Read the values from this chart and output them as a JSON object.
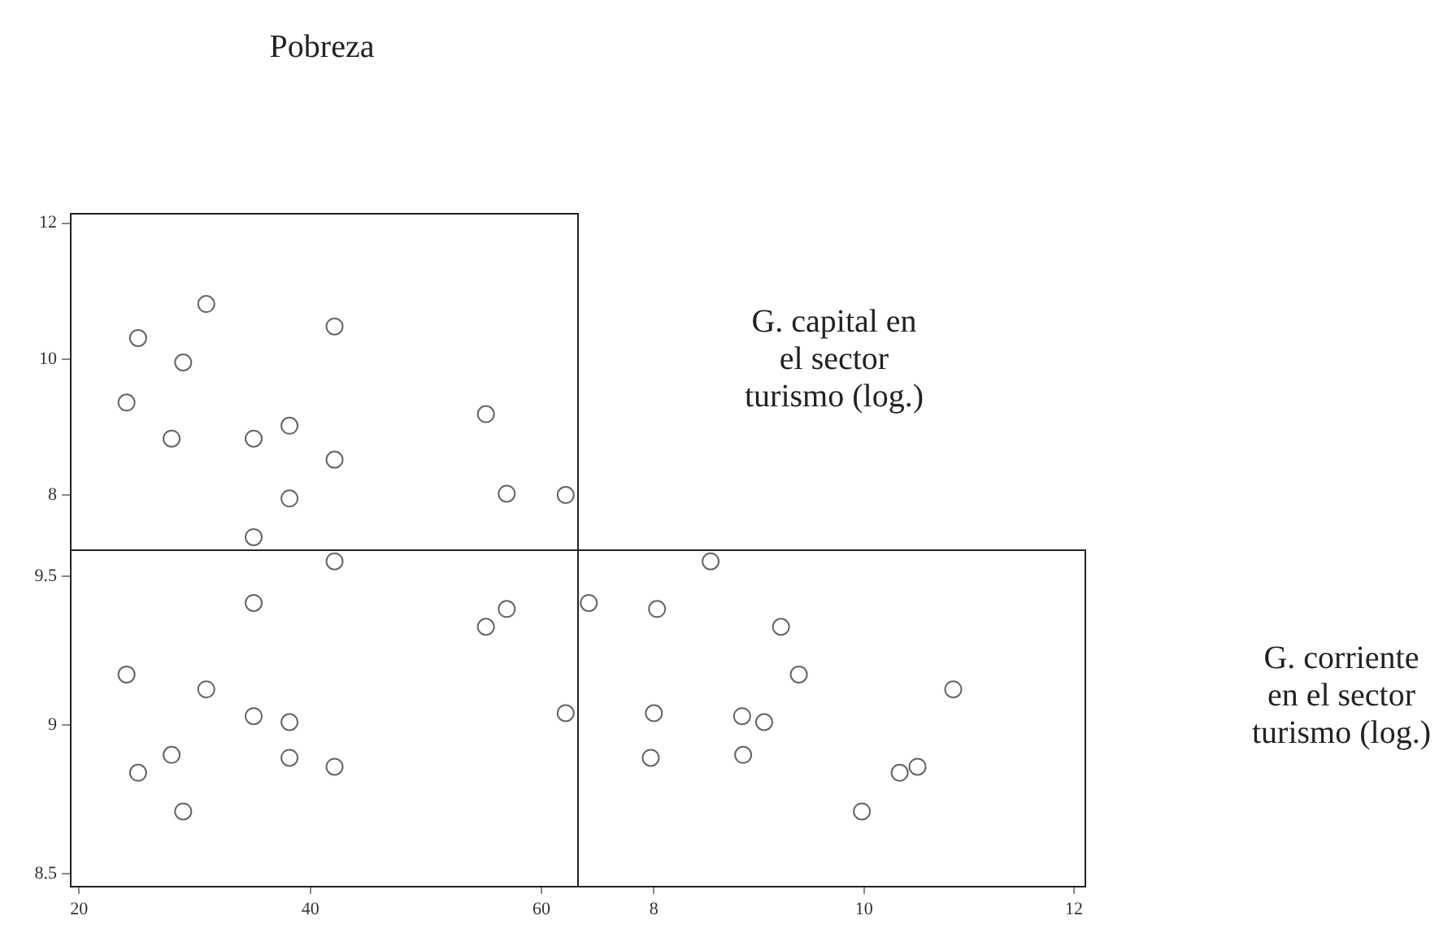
{
  "chart_data": [
    {
      "type": "scatter",
      "xlabel": "Pobreza",
      "ylabel": "G. capital en el sector turismo (log.)",
      "marker": "circle",
      "tick_labels": "y",
      "xlim": [
        19.2,
        63.1
      ],
      "ylim": [
        7.2,
        12.15
      ],
      "yticks": [
        8,
        10,
        12
      ],
      "series": [
        {
          "color": "#666666",
          "x": [
            24.1,
            25.1,
            28.0,
            29.0,
            31.0,
            35.1,
            35.1,
            38.2,
            38.2,
            42.1,
            42.1,
            55.2,
            57.0,
            62.1
          ],
          "values": [
            9.36,
            10.31,
            8.83,
            9.95,
            10.81,
            8.83,
            7.38,
            9.02,
            7.95,
            10.48,
            8.52,
            9.19,
            8.02,
            8.0
          ]
        }
      ]
    },
    {
      "type": "scatter",
      "ylabel": "G. corriente en el sector turismo (log.)",
      "marker": "circle",
      "xlim": [
        19.2,
        63.1
      ],
      "xticks": [
        20,
        40,
        60
      ],
      "ylim": [
        8.46,
        9.59
      ],
      "yticks": [
        8.5,
        9,
        9.5
      ],
      "series": [
        {
          "color": "#666666",
          "x": [
            24.1,
            25.1,
            28.0,
            29.0,
            31.0,
            35.1,
            35.1,
            38.2,
            38.2,
            42.1,
            42.1,
            55.2,
            57.0,
            62.1
          ],
          "values": [
            9.17,
            8.84,
            8.9,
            8.71,
            9.12,
            9.41,
            9.03,
            9.01,
            8.89,
            9.55,
            8.86,
            9.33,
            9.39,
            9.04
          ]
        }
      ]
    },
    {
      "type": "scatter",
      "marker": "circle",
      "tick_labels": "x",
      "xlim": [
        7.27,
        12.1
      ],
      "xticks": [
        8,
        10,
        12
      ],
      "ylim": [
        8.46,
        9.59
      ],
      "series": [
        {
          "color": "#666666",
          "x": [
            7.38,
            8.03,
            8.54,
            9.21,
            9.38,
            10.85,
            8.0,
            8.84,
            9.05,
            7.97,
            8.85,
            10.34,
            10.51,
            9.98
          ],
          "values": [
            9.41,
            9.39,
            9.55,
            9.33,
            9.17,
            9.12,
            9.04,
            9.03,
            9.01,
            8.89,
            8.9,
            8.84,
            8.86,
            8.71
          ]
        }
      ]
    }
  ]
}
